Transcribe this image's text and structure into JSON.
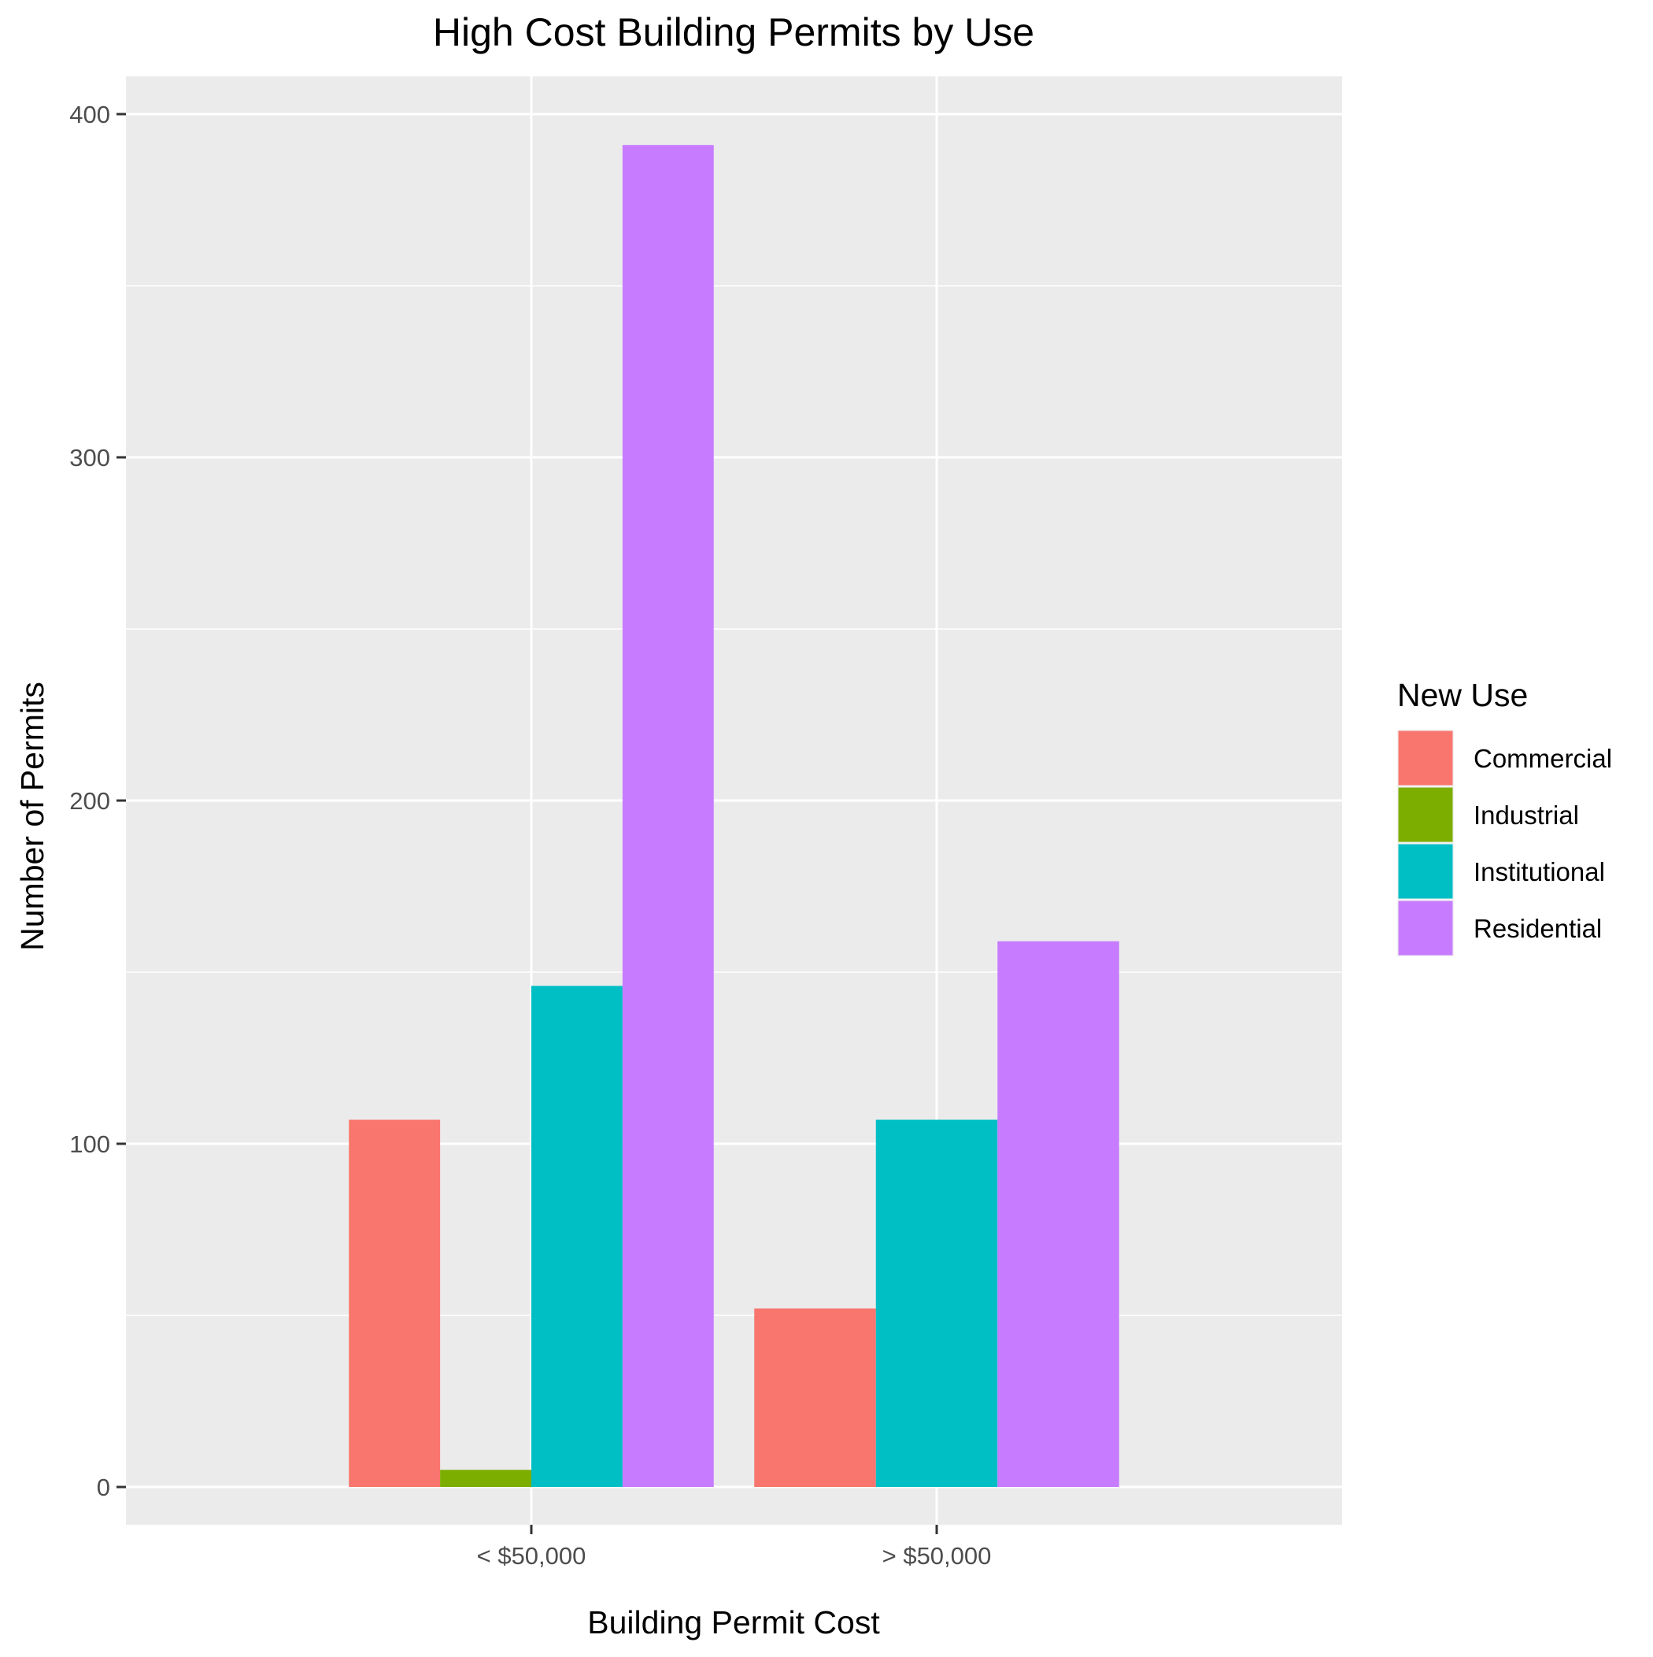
{
  "chart_data": {
    "type": "bar",
    "title": "High Cost Building Permits by Use",
    "xlabel": "Building Permit Cost",
    "ylabel": "Number of Permits",
    "categories": [
      "< $50,000",
      "> $50,000"
    ],
    "y_ticks": [
      0,
      100,
      200,
      300,
      400
    ],
    "ylim": [
      -11,
      411
    ],
    "grid": true,
    "legend": {
      "title": "New Use",
      "placement": "right"
    },
    "series": [
      {
        "name": "Commercial",
        "color": "#F8766D",
        "values": [
          107,
          52
        ]
      },
      {
        "name": "Industrial",
        "color": "#7CAE00",
        "values": [
          5,
          null
        ]
      },
      {
        "name": "Institutional",
        "color": "#00BFC4",
        "values": [
          146,
          107
        ]
      },
      {
        "name": "Residential",
        "color": "#C77CFF",
        "values": [
          391,
          159
        ]
      }
    ]
  }
}
